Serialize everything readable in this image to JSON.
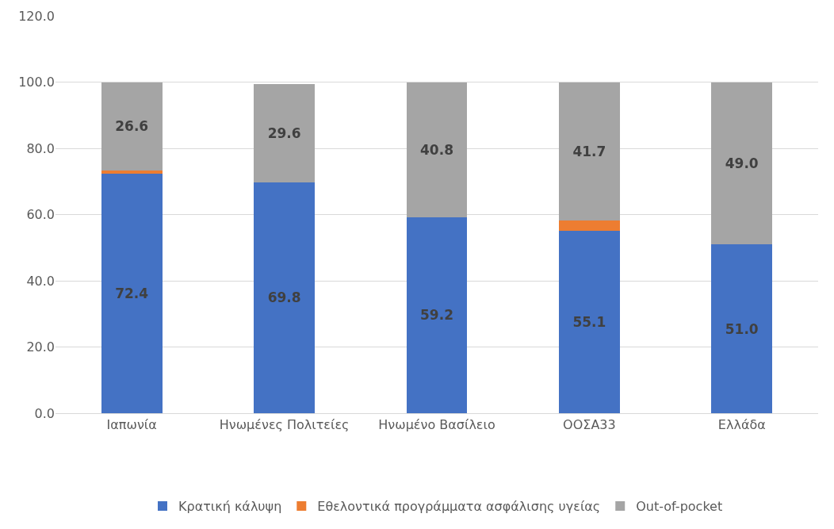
{
  "chart_data": {
    "type": "bar",
    "stacked": true,
    "categories": [
      "Ιαπωνία",
      "Ηνωμένες Πολιτείες",
      "Ηνωμένο Βασίλειο",
      "ΟΟΣΑ33",
      "Ελλάδα"
    ],
    "series": [
      {
        "name": "Κρατική κάλυψη",
        "color": "#4472c4",
        "values": [
          72.4,
          69.8,
          59.2,
          55.1,
          51.0
        ],
        "value_labels": [
          "72.4",
          "69.8",
          "59.2",
          "55.1",
          "51.0"
        ]
      },
      {
        "name": "Εθελοντικά προγράμματα ασφάλισης υγείας",
        "color": "#ed7d31",
        "values": [
          1.0,
          0,
          0,
          3.2,
          0
        ],
        "value_labels": [
          null,
          null,
          null,
          null,
          null
        ]
      },
      {
        "name": "Out-of-pocket",
        "color": "#a5a5a5",
        "values": [
          26.6,
          29.6,
          40.8,
          41.7,
          49.0
        ],
        "value_labels": [
          "26.6",
          "29.6",
          "40.8",
          "41.7",
          "49.0"
        ]
      }
    ],
    "ylim": [
      0,
      120
    ],
    "yticks": [
      {
        "value": 0,
        "label": "0.0"
      },
      {
        "value": 20,
        "label": "20.0"
      },
      {
        "value": 40,
        "label": "40.0"
      },
      {
        "value": 60,
        "label": "60.0"
      },
      {
        "value": 80,
        "label": "80.0"
      },
      {
        "value": 100,
        "label": "100.0"
      },
      {
        "value": 120,
        "label": "120.0"
      }
    ],
    "grid": "y",
    "legend": "bottom"
  }
}
